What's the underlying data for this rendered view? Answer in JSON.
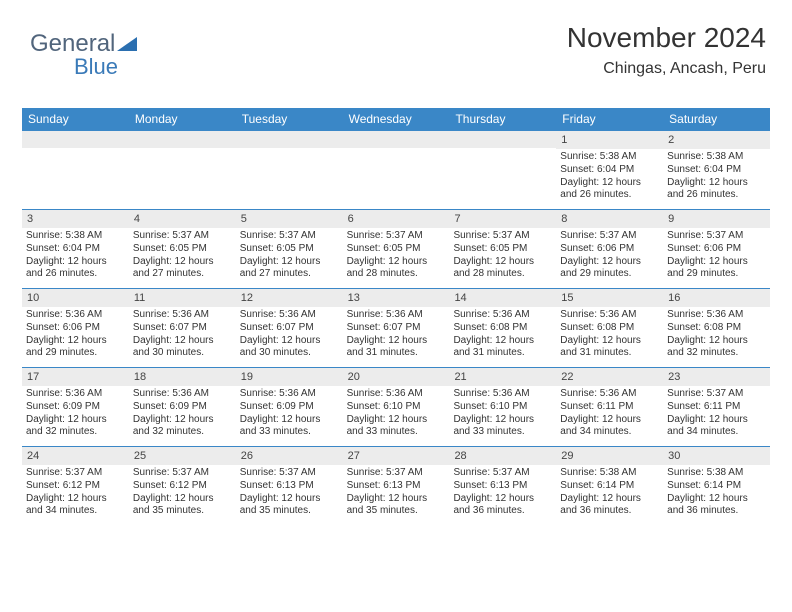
{
  "logo": {
    "text_a": "General",
    "text_b": "Blue",
    "triangle_color": "#2b6fb0"
  },
  "header": {
    "month": "November 2024",
    "location": "Chingas, Ancash, Peru"
  },
  "colors": {
    "header_bg": "#3a87c7",
    "header_text": "#ffffff",
    "daynum_bg": "#ececec",
    "row_border": "#3a87c7",
    "body_text": "#333333",
    "logo_gray": "#51657c",
    "logo_blue": "#3a7ab8"
  },
  "weekdays": [
    "Sunday",
    "Monday",
    "Tuesday",
    "Wednesday",
    "Thursday",
    "Friday",
    "Saturday"
  ],
  "layout": {
    "leading_blanks": 5,
    "days_in_month": 30
  },
  "days": {
    "1": {
      "sunrise": "5:38 AM",
      "sunset": "6:04 PM",
      "daylight": "12 hours and 26 minutes."
    },
    "2": {
      "sunrise": "5:38 AM",
      "sunset": "6:04 PM",
      "daylight": "12 hours and 26 minutes."
    },
    "3": {
      "sunrise": "5:38 AM",
      "sunset": "6:04 PM",
      "daylight": "12 hours and 26 minutes."
    },
    "4": {
      "sunrise": "5:37 AM",
      "sunset": "6:05 PM",
      "daylight": "12 hours and 27 minutes."
    },
    "5": {
      "sunrise": "5:37 AM",
      "sunset": "6:05 PM",
      "daylight": "12 hours and 27 minutes."
    },
    "6": {
      "sunrise": "5:37 AM",
      "sunset": "6:05 PM",
      "daylight": "12 hours and 28 minutes."
    },
    "7": {
      "sunrise": "5:37 AM",
      "sunset": "6:05 PM",
      "daylight": "12 hours and 28 minutes."
    },
    "8": {
      "sunrise": "5:37 AM",
      "sunset": "6:06 PM",
      "daylight": "12 hours and 29 minutes."
    },
    "9": {
      "sunrise": "5:37 AM",
      "sunset": "6:06 PM",
      "daylight": "12 hours and 29 minutes."
    },
    "10": {
      "sunrise": "5:36 AM",
      "sunset": "6:06 PM",
      "daylight": "12 hours and 29 minutes."
    },
    "11": {
      "sunrise": "5:36 AM",
      "sunset": "6:07 PM",
      "daylight": "12 hours and 30 minutes."
    },
    "12": {
      "sunrise": "5:36 AM",
      "sunset": "6:07 PM",
      "daylight": "12 hours and 30 minutes."
    },
    "13": {
      "sunrise": "5:36 AM",
      "sunset": "6:07 PM",
      "daylight": "12 hours and 31 minutes."
    },
    "14": {
      "sunrise": "5:36 AM",
      "sunset": "6:08 PM",
      "daylight": "12 hours and 31 minutes."
    },
    "15": {
      "sunrise": "5:36 AM",
      "sunset": "6:08 PM",
      "daylight": "12 hours and 31 minutes."
    },
    "16": {
      "sunrise": "5:36 AM",
      "sunset": "6:08 PM",
      "daylight": "12 hours and 32 minutes."
    },
    "17": {
      "sunrise": "5:36 AM",
      "sunset": "6:09 PM",
      "daylight": "12 hours and 32 minutes."
    },
    "18": {
      "sunrise": "5:36 AM",
      "sunset": "6:09 PM",
      "daylight": "12 hours and 32 minutes."
    },
    "19": {
      "sunrise": "5:36 AM",
      "sunset": "6:09 PM",
      "daylight": "12 hours and 33 minutes."
    },
    "20": {
      "sunrise": "5:36 AM",
      "sunset": "6:10 PM",
      "daylight": "12 hours and 33 minutes."
    },
    "21": {
      "sunrise": "5:36 AM",
      "sunset": "6:10 PM",
      "daylight": "12 hours and 33 minutes."
    },
    "22": {
      "sunrise": "5:36 AM",
      "sunset": "6:11 PM",
      "daylight": "12 hours and 34 minutes."
    },
    "23": {
      "sunrise": "5:37 AM",
      "sunset": "6:11 PM",
      "daylight": "12 hours and 34 minutes."
    },
    "24": {
      "sunrise": "5:37 AM",
      "sunset": "6:12 PM",
      "daylight": "12 hours and 34 minutes."
    },
    "25": {
      "sunrise": "5:37 AM",
      "sunset": "6:12 PM",
      "daylight": "12 hours and 35 minutes."
    },
    "26": {
      "sunrise": "5:37 AM",
      "sunset": "6:13 PM",
      "daylight": "12 hours and 35 minutes."
    },
    "27": {
      "sunrise": "5:37 AM",
      "sunset": "6:13 PM",
      "daylight": "12 hours and 35 minutes."
    },
    "28": {
      "sunrise": "5:37 AM",
      "sunset": "6:13 PM",
      "daylight": "12 hours and 36 minutes."
    },
    "29": {
      "sunrise": "5:38 AM",
      "sunset": "6:14 PM",
      "daylight": "12 hours and 36 minutes."
    },
    "30": {
      "sunrise": "5:38 AM",
      "sunset": "6:14 PM",
      "daylight": "12 hours and 36 minutes."
    }
  },
  "labels": {
    "sunrise": "Sunrise: ",
    "sunset": "Sunset: ",
    "daylight": "Daylight: "
  }
}
